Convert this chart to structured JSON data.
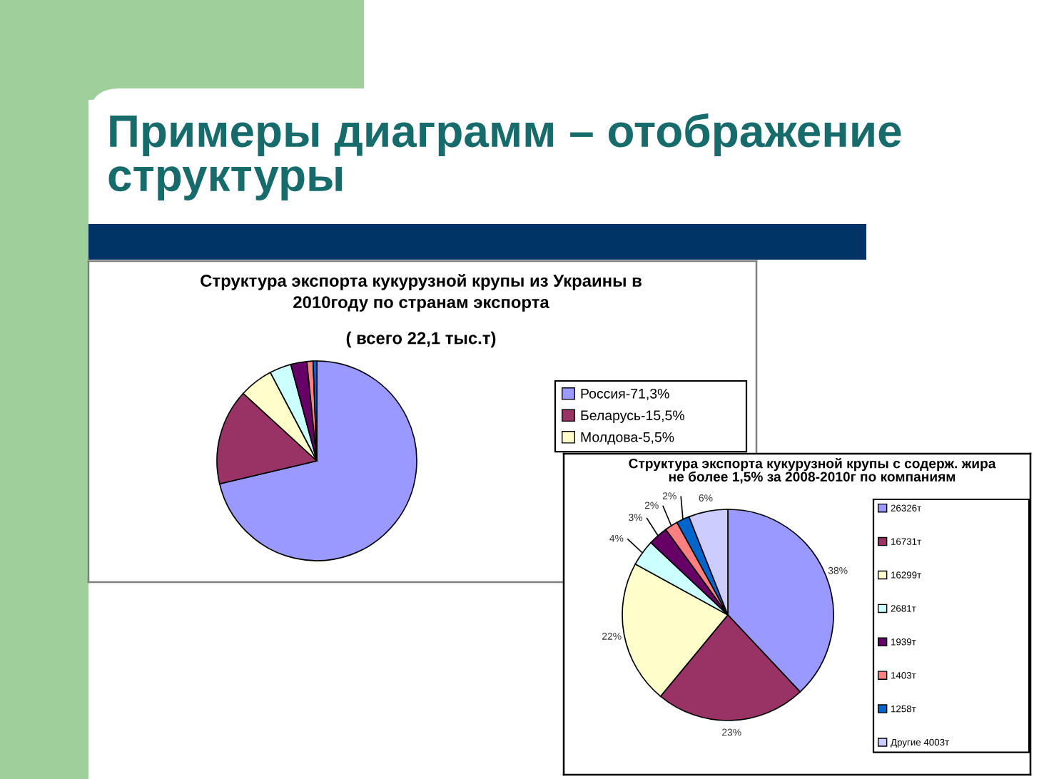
{
  "chart_data": [
    {
      "type": "pie",
      "title": "Структура экспорта кукурузной крупы из Украины в\n2010году по странам экспорта",
      "subtitle": "( всего 22,1 тыс.т)",
      "annotations": [
        "Примеры диаграмм – отображение\nструктуры"
      ],
      "categories": [
        "Россия-71,3%",
        "Беларусь-15,5%",
        "Молдова-5,5%",
        null,
        null,
        null,
        null
      ],
      "values": [
        71.3,
        15.5,
        5.5,
        3.5,
        2.6,
        1.0,
        0.6
      ],
      "colors": [
        "#9999ff",
        "#993366",
        "#ffffcc",
        "#ccffff",
        "#660066",
        "#ff8080",
        "#0066cc"
      ],
      "legend": "right"
    },
    {
      "type": "pie",
      "title": "Структура экспорта кукурузной крупы с содерж. жира\nне более 1,5% за 2008-2010г по компаниям",
      "categories": [
        "26326т",
        "16731т",
        "16299т",
        "2681т",
        "1939т",
        "1403т",
        "1258т",
        "Другие 4003т"
      ],
      "values": [
        38,
        23,
        22,
        4,
        3,
        2,
        2,
        6
      ],
      "value_labels": [
        "38%",
        "23%",
        "22%",
        "4%",
        "3%",
        "2%",
        "2%",
        "6%"
      ],
      "colors": [
        "#9999ff",
        "#993366",
        "#ffffcc",
        "#ccffff",
        "#660066",
        "#ff8080",
        "#0066cc",
        "#ccccff"
      ],
      "legend": "right"
    }
  ]
}
